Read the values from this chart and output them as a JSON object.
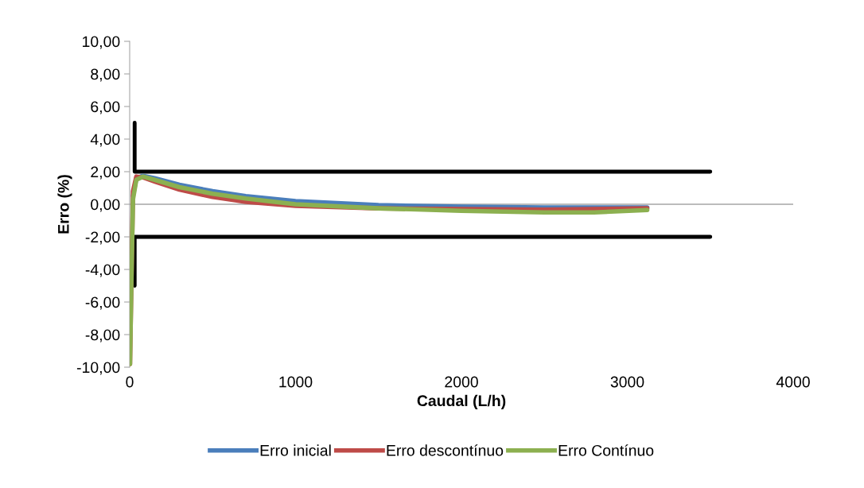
{
  "chart_data": {
    "type": "line",
    "xlabel": "Caudal (L/h)",
    "ylabel": "Erro (%)",
    "xlim": [
      0,
      4000
    ],
    "xticks": [
      0,
      1000,
      2000,
      3000,
      4000
    ],
    "ylim": [
      -10,
      10
    ],
    "yticks": [
      {
        "value": -10,
        "label": "-10,00"
      },
      {
        "value": -8,
        "label": "-8,00"
      },
      {
        "value": -6,
        "label": "-6,00"
      },
      {
        "value": -4,
        "label": "-4,00"
      },
      {
        "value": -2,
        "label": "-2,00"
      },
      {
        "value": 0,
        "label": "0,00"
      },
      {
        "value": 2,
        "label": "2,00"
      },
      {
        "value": 4,
        "label": "4,00"
      },
      {
        "value": 6,
        "label": "6,00"
      },
      {
        "value": 8,
        "label": "8,00"
      },
      {
        "value": 10,
        "label": "10,00"
      }
    ],
    "grid": false,
    "legend": "bottom",
    "marker": "none",
    "line_style": "solid",
    "ref_lines": [
      {
        "axis": "y",
        "value": 0,
        "color": "#a6a6a6"
      }
    ],
    "series": [
      {
        "name": "Erro inicial",
        "color": "#4a7ebb",
        "x": [
          20,
          40,
          80,
          150,
          300,
          500,
          700,
          1000,
          1500,
          2000,
          2500,
          3120
        ],
        "values": [
          0.5,
          1.6,
          1.75,
          1.6,
          1.2,
          0.8,
          0.5,
          0.2,
          -0.05,
          -0.15,
          -0.2,
          -0.2
        ]
      },
      {
        "name": "Erro descontínuo",
        "color": "#be4b48",
        "x": [
          2,
          10,
          20,
          40,
          80,
          150,
          300,
          500,
          700,
          1000,
          1500,
          2000,
          2500,
          3120
        ],
        "values": [
          -9.8,
          -5,
          0.8,
          1.7,
          1.65,
          1.4,
          0.9,
          0.45,
          0.15,
          -0.1,
          -0.25,
          -0.3,
          -0.33,
          -0.25
        ]
      },
      {
        "name": "Erro Contínuo",
        "color": "#8cb050",
        "x": [
          2,
          10,
          20,
          40,
          80,
          150,
          300,
          500,
          700,
          1000,
          1500,
          2000,
          2500,
          2800,
          3120
        ],
        "values": [
          -9.8,
          -5,
          0.3,
          1.5,
          1.7,
          1.5,
          1.05,
          0.65,
          0.35,
          0.0,
          -0.25,
          -0.4,
          -0.5,
          -0.5,
          -0.35
        ]
      },
      {
        "color": "#000000",
        "x": [
          30,
          30,
          3500
        ],
        "values": [
          5,
          2,
          2
        ]
      },
      {
        "color": "#000000",
        "x": [
          30,
          30,
          3500
        ],
        "values": [
          -5,
          -2,
          -2
        ]
      }
    ]
  }
}
